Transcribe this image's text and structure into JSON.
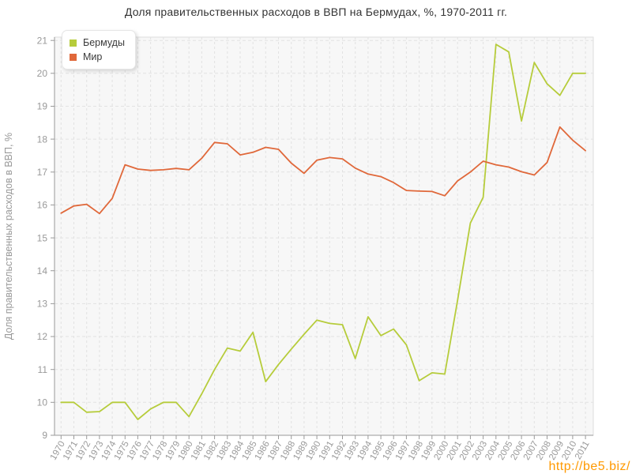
{
  "watermark": "http://be5.biz/",
  "colors": {
    "plot_bg": "#f7f7f7",
    "plot_border": "#dddddd",
    "grid": "#e2e2e2",
    "axis": "#999999",
    "tick_text": "#999999",
    "title_text": "#333333",
    "watermark": "#ff9900"
  },
  "chart_data": {
    "type": "line",
    "title": "Доля правительственных расходов в ВВП на Бермудах, %, 1970-2011 гг.",
    "xlabel": "",
    "ylabel": "Доля правительственных расходов в ВВП, %",
    "ylim": [
      9,
      21.1
    ],
    "yticks": [
      9,
      10,
      11,
      12,
      13,
      14,
      15,
      16,
      17,
      18,
      19,
      20,
      21
    ],
    "grid": true,
    "legend_position": "top-left",
    "x": [
      1970,
      1971,
      1972,
      1973,
      1974,
      1975,
      1976,
      1977,
      1978,
      1979,
      1980,
      1981,
      1982,
      1983,
      1984,
      1985,
      1986,
      1987,
      1988,
      1989,
      1990,
      1991,
      1992,
      1993,
      1994,
      1995,
      1996,
      1997,
      1998,
      1999,
      2000,
      2001,
      2002,
      2003,
      2004,
      2005,
      2006,
      2007,
      2008,
      2009,
      2010,
      2011
    ],
    "series": [
      {
        "name": "Бермуды",
        "color": "#b6cc3b",
        "values": [
          10.0,
          10.0,
          9.7,
          9.72,
          10.0,
          10.0,
          9.48,
          9.8,
          10.0,
          10.0,
          9.57,
          10.26,
          11.0,
          11.65,
          11.56,
          12.13,
          10.63,
          11.15,
          11.62,
          12.07,
          12.5,
          12.4,
          12.36,
          11.33,
          12.6,
          12.03,
          12.23,
          11.75,
          10.66,
          10.9,
          10.86,
          13.1,
          15.45,
          16.23,
          20.88,
          20.65,
          18.55,
          20.33,
          19.68,
          19.33,
          20.0,
          20.0
        ]
      },
      {
        "name": "Мир",
        "color": "#e0683a",
        "values": [
          15.75,
          15.97,
          16.02,
          15.74,
          16.2,
          17.22,
          17.09,
          17.05,
          17.07,
          17.11,
          17.07,
          17.42,
          17.9,
          17.86,
          17.52,
          17.6,
          17.75,
          17.69,
          17.27,
          16.96,
          17.36,
          17.44,
          17.4,
          17.12,
          16.94,
          16.86,
          16.68,
          16.44,
          16.42,
          16.41,
          16.28,
          16.73,
          17.0,
          17.33,
          17.22,
          17.15,
          17.01,
          16.91,
          17.29,
          18.37,
          17.97,
          17.65
        ]
      }
    ]
  }
}
